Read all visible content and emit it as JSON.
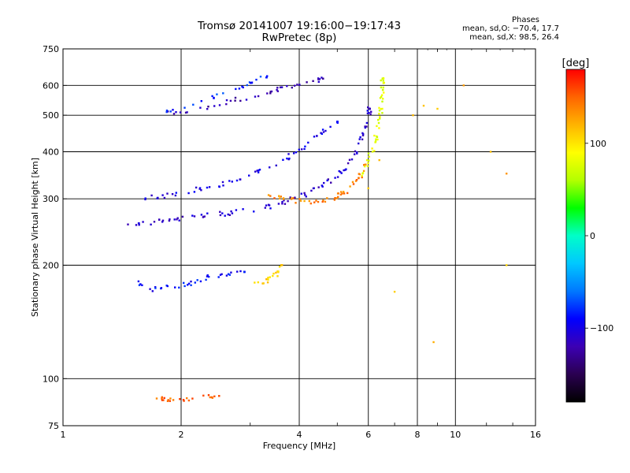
{
  "header": {
    "title_line1": "Tromsø 20141007 19:16:00−19:17:43",
    "title_line2": "RwPretec (8p)",
    "phases_title": "Phases",
    "phases_o": "mean, sd,O: −70.4, 17.7",
    "phases_x": "mean, sd,X:  98.5, 26.4"
  },
  "colors": {
    "grid": "#000000",
    "colormap": [
      "#000000",
      "#2a0050",
      "#3c00b4",
      "#0000ff",
      "#0078ff",
      "#00c8ff",
      "#00ffc8",
      "#00ff00",
      "#b4ff00",
      "#ffff00",
      "#ffb400",
      "#ff6400",
      "#ff0000"
    ]
  },
  "chart_data": {
    "type": "scatter",
    "title": "Tromsø 20141007 19:16:00−19:17:43",
    "subtitle": "RwPretec (8p)",
    "xlabel": "Frequency [MHz]",
    "ylabel": "Stationary phase Virtual Height [km]",
    "x_scale": "log",
    "y_scale": "log",
    "xlim": [
      1,
      16
    ],
    "ylim": [
      75,
      750
    ],
    "x_ticks": [
      "1",
      "2",
      "4",
      "6",
      "8",
      "10",
      "16"
    ],
    "x_tick_values": [
      1,
      2,
      4,
      6,
      8,
      10,
      16
    ],
    "y_ticks": [
      "75",
      "100",
      "200",
      "300",
      "400",
      "500",
      "600",
      "750"
    ],
    "y_tick_values": [
      75,
      100,
      200,
      300,
      400,
      500,
      600,
      750
    ],
    "grid_x": [
      2,
      4,
      6,
      8,
      10
    ],
    "grid_y": [
      100,
      200,
      300,
      400,
      500,
      600
    ],
    "colorbar": {
      "label": "[deg]",
      "min": -180,
      "max": 180,
      "ticks": [
        "100",
        "0",
        "−100"
      ],
      "tick_values": [
        100,
        0,
        -100
      ]
    },
    "traces": [
      {
        "name_hint": "F2 O-mode main trace",
        "phase": -110,
        "points": [
          [
            1.45,
            255
          ],
          [
            1.6,
            258
          ],
          [
            1.8,
            262
          ],
          [
            2.0,
            266
          ],
          [
            2.3,
            270
          ],
          [
            2.6,
            274
          ],
          [
            3.0,
            280
          ],
          [
            3.4,
            288
          ],
          [
            3.8,
            298
          ],
          [
            4.2,
            310
          ],
          [
            4.6,
            325
          ],
          [
            5.0,
            345
          ],
          [
            5.3,
            370
          ],
          [
            5.6,
            400
          ],
          [
            5.8,
            440
          ],
          [
            5.95,
            480
          ],
          [
            6.05,
            520
          ]
        ]
      },
      {
        "name_hint": "F2 O-mode upper band",
        "phase": -100,
        "points": [
          [
            1.6,
            300
          ],
          [
            1.8,
            305
          ],
          [
            2.0,
            312
          ],
          [
            2.3,
            320
          ],
          [
            2.6,
            330
          ],
          [
            3.0,
            345
          ],
          [
            3.4,
            365
          ],
          [
            3.8,
            390
          ],
          [
            4.2,
            420
          ],
          [
            4.6,
            450
          ],
          [
            5.0,
            480
          ]
        ]
      },
      {
        "name_hint": "F2 X-mode trace",
        "phase": 140,
        "points": [
          [
            3.3,
            310
          ],
          [
            3.6,
            302
          ],
          [
            4.0,
            296
          ],
          [
            4.4,
            295
          ],
          [
            4.8,
            300
          ],
          [
            5.1,
            308
          ],
          [
            5.4,
            320
          ],
          [
            5.7,
            340
          ],
          [
            5.9,
            370
          ]
        ]
      },
      {
        "name_hint": "F2 X-mode cusp",
        "phase": 80,
        "points": [
          [
            5.8,
            350
          ],
          [
            6.0,
            380
          ],
          [
            6.2,
            410
          ],
          [
            6.3,
            440
          ],
          [
            6.4,
            480
          ],
          [
            6.45,
            520
          ],
          [
            6.5,
            560
          ],
          [
            6.5,
            600
          ],
          [
            6.52,
            625
          ]
        ]
      },
      {
        "name_hint": "Multi-hop echo",
        "phase": -120,
        "points": [
          [
            1.85,
            505
          ],
          [
            2.2,
            520
          ],
          [
            2.6,
            540
          ],
          [
            3.0,
            560
          ],
          [
            3.4,
            578
          ],
          [
            3.8,
            595
          ],
          [
            4.2,
            610
          ],
          [
            4.6,
            625
          ]
        ]
      },
      {
        "name_hint": "Upper multi-hop cloud",
        "phase": -80,
        "points": [
          [
            1.85,
            515
          ],
          [
            2.2,
            540
          ],
          [
            2.6,
            575
          ],
          [
            3.0,
            610
          ],
          [
            3.3,
            630
          ]
        ]
      },
      {
        "name_hint": "F1 trace",
        "phase": -90,
        "points": [
          [
            1.55,
            180
          ],
          [
            1.7,
            172
          ],
          [
            1.9,
            176
          ],
          [
            2.1,
            178
          ],
          [
            2.3,
            185
          ],
          [
            2.6,
            188
          ],
          [
            2.9,
            192
          ]
        ]
      },
      {
        "name_hint": "F1 X-mode",
        "phase": 110,
        "points": [
          [
            3.1,
            178
          ],
          [
            3.3,
            182
          ],
          [
            3.5,
            190
          ],
          [
            3.6,
            200
          ]
        ]
      },
      {
        "name_hint": "E / Es low trace",
        "phase": 150,
        "points": [
          [
            1.7,
            88
          ],
          [
            1.8,
            88
          ],
          [
            1.95,
            88
          ],
          [
            2.2,
            89
          ],
          [
            2.5,
            90
          ]
        ]
      },
      {
        "name_hint": "Sparse noise",
        "phase": 120,
        "points": [
          [
            7.8,
            500
          ],
          [
            8.3,
            530
          ],
          [
            9.0,
            520
          ],
          [
            10.5,
            600
          ],
          [
            12.3,
            400
          ],
          [
            13.5,
            350
          ],
          [
            7.0,
            170
          ],
          [
            8.8,
            125
          ],
          [
            13.5,
            200
          ],
          [
            6.0,
            320
          ],
          [
            6.4,
            380
          ]
        ]
      }
    ]
  }
}
